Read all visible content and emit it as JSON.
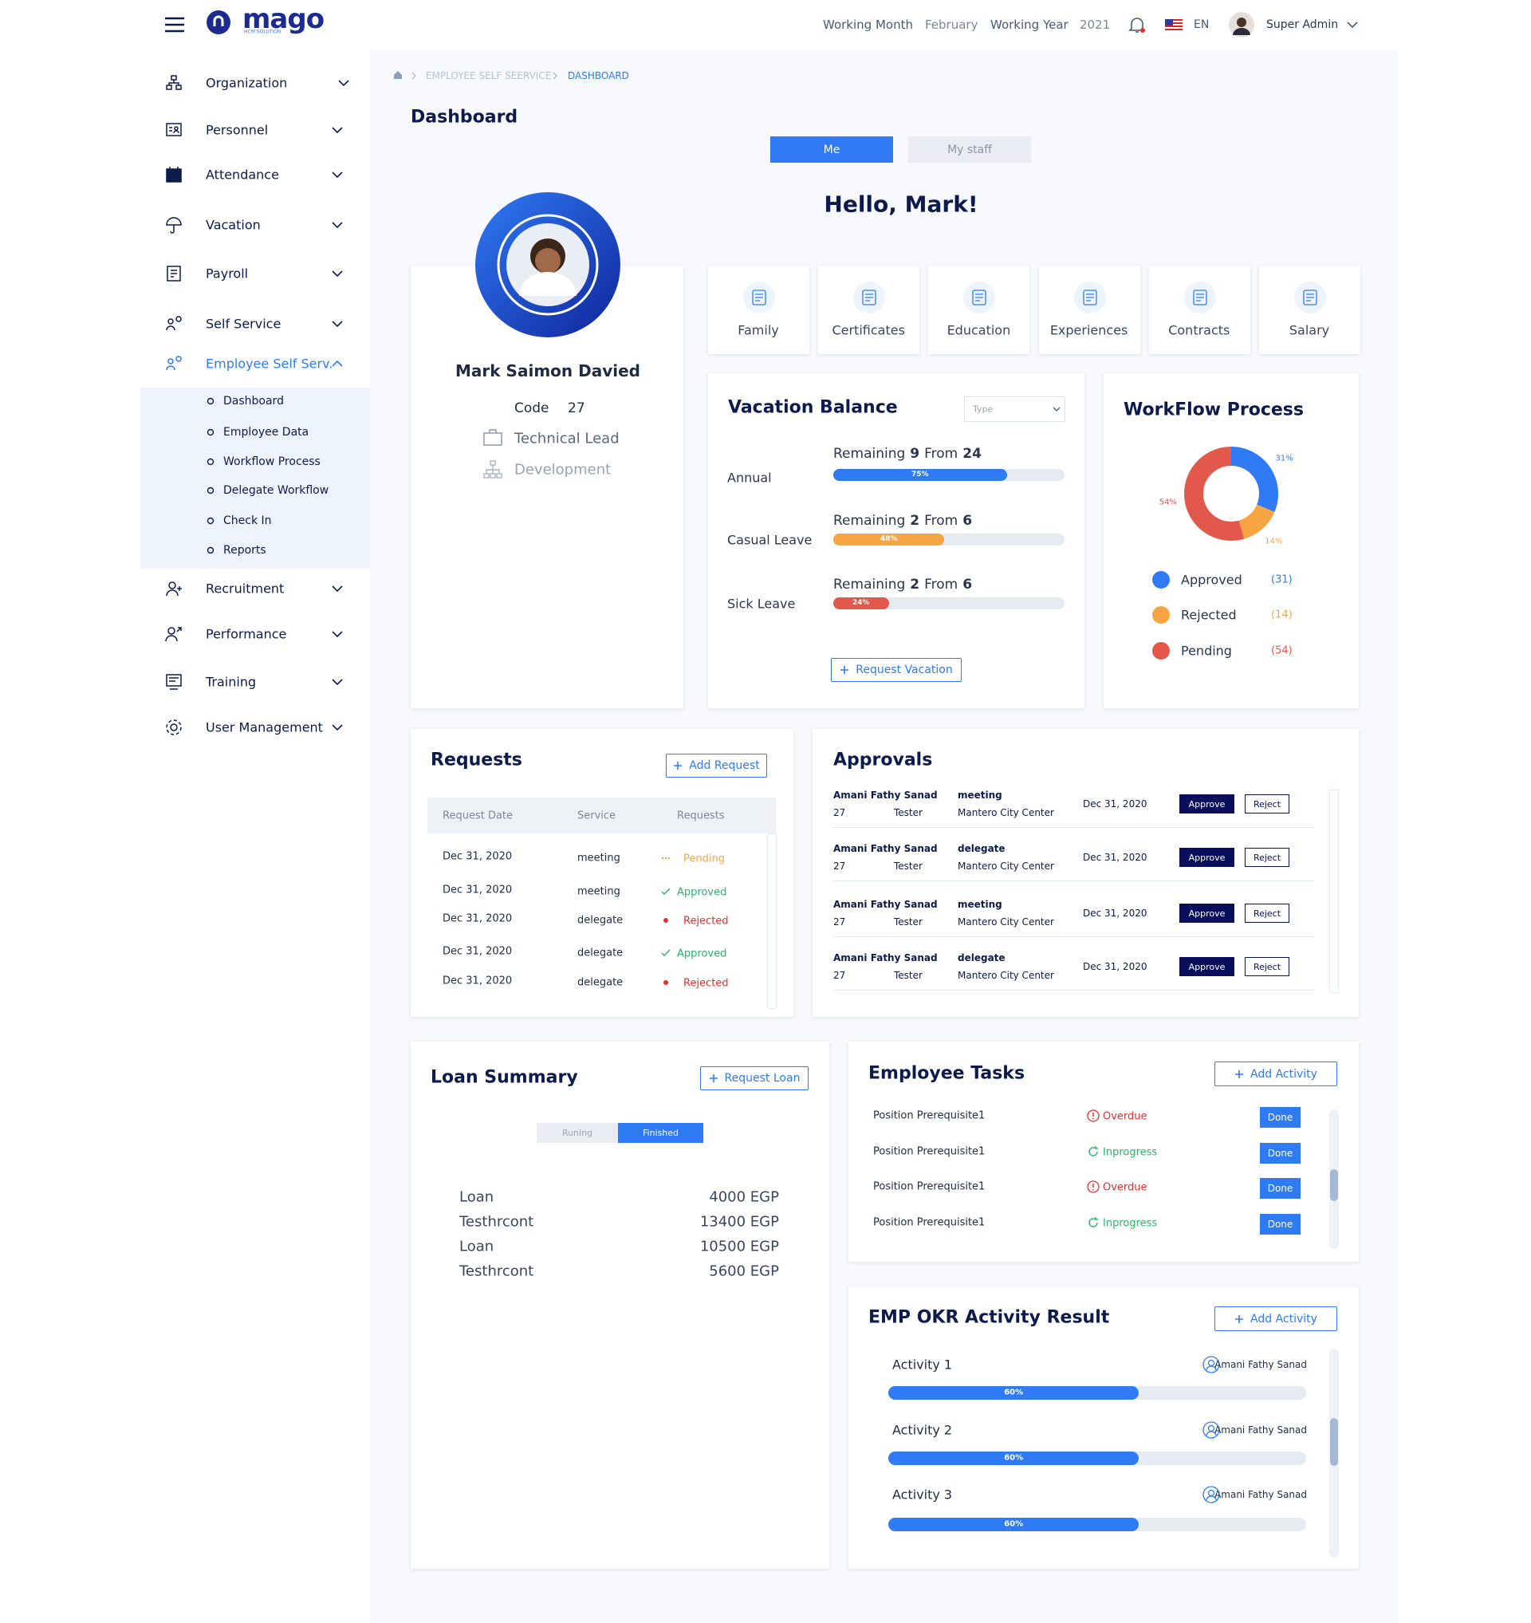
{
  "header": {
    "logo": "mago",
    "logo_tagline": "HCM SOLUTION",
    "working_month_label": "Working Month",
    "working_month": "February",
    "working_year_label": "Working Year",
    "working_year": "2021",
    "language": "EN",
    "user": "Super Admin"
  },
  "sidebar": {
    "items": [
      "Organization",
      "Personnel",
      "Attendance",
      "Vacation",
      "Payroll",
      "Self Service",
      "Employee Self Serv.",
      "Recruitment",
      "Performance",
      "Training",
      "User  Management"
    ],
    "submenu": [
      "Dashboard",
      "Employee Data",
      "Workflow Process",
      "Delegate Workflow",
      "Check In",
      "Reports"
    ]
  },
  "breadcrumb": [
    "EMPLOYEE SELF SEERVICE",
    "DASHBOARD"
  ],
  "page_title": "Dashboard",
  "tabs": [
    "Me",
    "My staff"
  ],
  "greeting": "Hello, Mark!",
  "profile": {
    "name": "Mark Saimon Davied",
    "code_label": "Code",
    "code": 27,
    "position": "Technical Lead",
    "department": "Development"
  },
  "tiles": [
    "Family",
    "Certificates",
    "Education",
    "Experiences",
    "Contracts",
    "Salary"
  ],
  "vacation": {
    "title": "Vacation Balance",
    "type_placeholder": "Type",
    "remaining_label": "Remaining",
    "from_label": "From",
    "button": "Request Vacation",
    "items": [
      {
        "name": "Annual",
        "remaining": 9,
        "total": 24,
        "percent": 75,
        "percent_label": "75%"
      },
      {
        "name": "Casual Leave",
        "remaining": 2,
        "total": 6,
        "percent": 48,
        "percent_label": "48%"
      },
      {
        "name": "Sick Leave",
        "remaining": 2,
        "total": 6,
        "percent": 24,
        "percent_label": "24%"
      }
    ]
  },
  "workflow": {
    "title": "WorkFlow Process",
    "items": [
      {
        "name": "Approved",
        "color": "#2f7bf5",
        "count": 31,
        "count_label": "(31)",
        "percent_label": "31%"
      },
      {
        "name": "Rejected",
        "color": "#f7a543",
        "count": 14,
        "count_label": "(14)",
        "percent_label": "14%"
      },
      {
        "name": "Pending",
        "color": "#e2584a",
        "count": 54,
        "count_label": "(54)",
        "percent_label": "54%"
      }
    ]
  },
  "requests": {
    "title": "Requests",
    "button": "Add Request",
    "columns": [
      "Request Date",
      "Service",
      "Requests"
    ],
    "rows": [
      [
        "Dec 31, 2020",
        "meeting",
        "Pending"
      ],
      [
        "Dec 31, 2020",
        "meeting",
        "Approved"
      ],
      [
        "Dec 31, 2020",
        "delegate",
        "Rejected"
      ],
      [
        "Dec 31, 2020",
        "delegate",
        "Approved"
      ],
      [
        "Dec 31, 2020",
        "delegate",
        "Rejected"
      ]
    ]
  },
  "approvals": {
    "title": "Approvals",
    "approve": "Approve",
    "reject": "Reject",
    "rows": [
      {
        "name": "Amani Fathy Sanad",
        "code": 27,
        "role": "Tester",
        "type": "meeting",
        "location": "Mantero City Center",
        "date": "Dec 31, 2020"
      },
      {
        "name": "Amani Fathy Sanad",
        "code": 27,
        "role": "Tester",
        "type": "delegate",
        "location": "Mantero City Center",
        "date": "Dec 31, 2020"
      },
      {
        "name": "Amani Fathy Sanad",
        "code": 27,
        "role": "Tester",
        "type": "meeting",
        "location": "Mantero City Center",
        "date": "Dec 31, 2020"
      },
      {
        "name": "Amani Fathy Sanad",
        "code": 27,
        "role": "Tester",
        "type": "delegate",
        "location": "Mantero City Center",
        "date": "Dec 31, 2020"
      }
    ]
  },
  "loan": {
    "title": "Loan Summary",
    "button": "Request  Loan",
    "tabs": [
      "Runing",
      "Finished"
    ],
    "rows": [
      [
        "Loan",
        "4000 EGP"
      ],
      [
        "Testhrcont",
        "13400 EGP"
      ],
      [
        "Loan",
        "10500 EGP"
      ],
      [
        "Testhrcont",
        "5600 EGP"
      ]
    ]
  },
  "tasks": {
    "title": "Employee Tasks",
    "button": "Add  Activity",
    "done": "Done",
    "rows": [
      {
        "name": "Position Prerequisite1",
        "status": "Overdue"
      },
      {
        "name": "Position Prerequisite1",
        "status": "Inprogress"
      },
      {
        "name": "Position Prerequisite1",
        "status": "Overdue"
      },
      {
        "name": "Position Prerequisite1",
        "status": "Inprogress"
      }
    ]
  },
  "okr": {
    "title": "EMP OKR Activity Result",
    "button": "Add  Activity",
    "rows": [
      {
        "name": "Activity 1",
        "person": "Amani Fathy Sanad",
        "percent": 60,
        "percent_label": "60%"
      },
      {
        "name": "Activity 2",
        "person": "Amani Fathy Sanad",
        "percent": 60,
        "percent_label": "60%"
      },
      {
        "name": "Activity 3",
        "person": "Amani Fathy Sanad",
        "percent": 60,
        "percent_label": "60%"
      }
    ]
  }
}
